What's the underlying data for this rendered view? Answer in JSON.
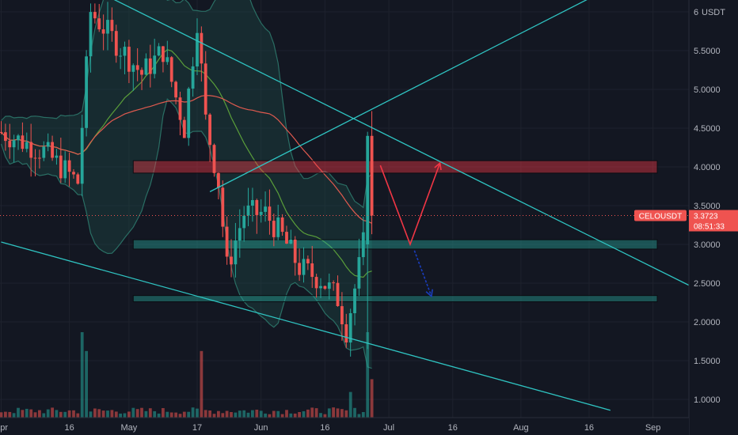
{
  "chart_data": {
    "type": "candlestick",
    "symbol": "CELOUSDT",
    "currency_label": "USDT",
    "last_price": "3.3723",
    "countdown": "08:51:33",
    "ylim": [
      0.86,
      6.2
    ],
    "y_ticks": [
      {
        "value": 6.0,
        "label": "6"
      },
      {
        "value": 5.5,
        "label": "5.5000"
      },
      {
        "value": 5.0,
        "label": "5.0000"
      },
      {
        "value": 4.5,
        "label": "4.5000"
      },
      {
        "value": 4.0,
        "label": "4.0000"
      },
      {
        "value": 3.5,
        "label": "3.5000"
      },
      {
        "value": 3.0,
        "label": "3.0000"
      },
      {
        "value": 2.5,
        "label": "2.5000"
      },
      {
        "value": 2.0,
        "label": "2.0000"
      },
      {
        "value": 1.5,
        "label": "1.5000"
      },
      {
        "value": 1.0,
        "label": "1.0000"
      }
    ],
    "x_ticks": [
      {
        "day": 0,
        "label": "Apr"
      },
      {
        "day": 16,
        "label": "16"
      },
      {
        "day": 30,
        "label": "May"
      },
      {
        "day": 46,
        "label": "17"
      },
      {
        "day": 61,
        "label": "Jun"
      },
      {
        "day": 76,
        "label": "16"
      },
      {
        "day": 91,
        "label": "Jul"
      },
      {
        "day": 106,
        "label": "16"
      },
      {
        "day": 122,
        "label": "Aug"
      },
      {
        "day": 138,
        "label": "16"
      },
      {
        "day": 153,
        "label": "Sep"
      }
    ],
    "candle_count": 88,
    "key_closes": [
      {
        "day": 0,
        "close": 4.45
      },
      {
        "day": 10,
        "close": 4.2
      },
      {
        "day": 18,
        "close": 3.8
      },
      {
        "day": 21,
        "close": 6.0
      },
      {
        "day": 27,
        "close": 5.6
      },
      {
        "day": 33,
        "close": 5.2
      },
      {
        "day": 38,
        "close": 5.5
      },
      {
        "day": 43,
        "close": 4.5
      },
      {
        "day": 46,
        "close": 5.9
      },
      {
        "day": 48,
        "close": 4.6
      },
      {
        "day": 51,
        "close": 3.8
      },
      {
        "day": 53,
        "close": 2.7
      },
      {
        "day": 57,
        "close": 3.4
      },
      {
        "day": 62,
        "close": 3.4
      },
      {
        "day": 66,
        "close": 3.1
      },
      {
        "day": 70,
        "close": 2.7
      },
      {
        "day": 75,
        "close": 2.55
      },
      {
        "day": 79,
        "close": 2.3
      },
      {
        "day": 81,
        "close": 1.9
      },
      {
        "day": 84,
        "close": 2.7
      },
      {
        "day": 85,
        "close": 3.0
      },
      {
        "day": 86,
        "close": 4.4
      },
      {
        "day": 87,
        "close": 3.37
      }
    ],
    "volume_spikes": [
      {
        "day": 19,
        "value": 100
      },
      {
        "day": 20,
        "value": 78
      },
      {
        "day": 47,
        "value": 78
      },
      {
        "day": 82,
        "value": 30
      },
      {
        "day": 86,
        "value": 100
      },
      {
        "day": 87,
        "value": 45
      }
    ],
    "zones": [
      {
        "name": "resistance",
        "from_day": 31,
        "to_day": 154,
        "low": 3.92,
        "high": 4.08,
        "color": "#f23645"
      },
      {
        "name": "support",
        "from_day": 31,
        "to_day": 154,
        "low": 2.94,
        "high": 3.06,
        "color": "#26a69a"
      },
      {
        "name": "lower-support",
        "from_day": 31,
        "to_day": 154,
        "low": 2.26,
        "high": 2.34,
        "color": "#26a69a"
      }
    ],
    "trendlines": [
      {
        "name": "descending-resistance",
        "points": [
          [
            25,
            6.2
          ],
          [
            163,
            2.43
          ]
        ]
      },
      {
        "name": "rising-support",
        "points": [
          [
            49,
            3.68
          ],
          [
            139,
            6.2
          ]
        ]
      },
      {
        "name": "lower-channel",
        "points": [
          [
            0,
            3.03
          ],
          [
            143,
            0.86
          ]
        ]
      }
    ],
    "projection_arrows": [
      {
        "color": "#f23645",
        "points": [
          [
            89,
            4.02
          ],
          [
            96,
            3.0
          ],
          [
            103,
            4.05
          ]
        ]
      },
      {
        "color": "#1a3dbd",
        "points": [
          [
            97,
            2.92
          ],
          [
            101,
            2.33
          ]
        ]
      }
    ],
    "colors": {
      "background": "#131722",
      "up": "#26a69a",
      "down": "#ef5350",
      "bb_fill": "#1f4f4a",
      "bb_line": "#2a6e64",
      "ma_red": "#e05a4f",
      "ma_green": "#5a9e3a",
      "trendline": "#2fc4c2",
      "price_line": "#ef5350",
      "label_bg": "#ef5350"
    }
  }
}
